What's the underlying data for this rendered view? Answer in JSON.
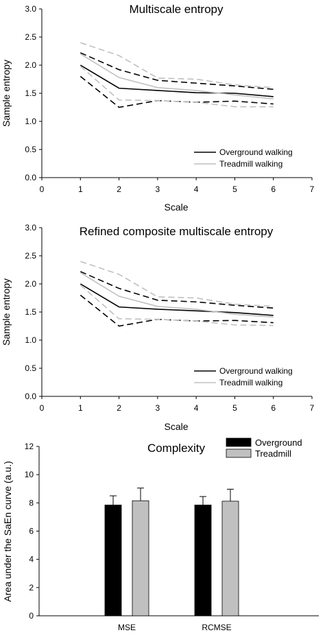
{
  "chart_data": [
    {
      "type": "line",
      "title": "Multiscale entropy",
      "xlabel": "Scale",
      "ylabel": "Sample entropy",
      "xlim": [
        0,
        7
      ],
      "ylim": [
        0,
        3.0
      ],
      "x_ticks": [
        "0",
        "1",
        "2",
        "3",
        "4",
        "5",
        "6",
        "7"
      ],
      "y_ticks": [
        "0.0",
        "0.5",
        "1.0",
        "1.5",
        "2.0",
        "2.5",
        "3.0"
      ],
      "x": [
        1,
        2,
        3,
        4,
        5,
        6
      ],
      "legend_position": "bottom-right",
      "series": [
        {
          "name": "Overground walking",
          "style": "solid",
          "color": "#000000",
          "values": [
            2.0,
            1.59,
            1.55,
            1.51,
            1.5,
            1.44
          ]
        },
        {
          "style": "dashed",
          "color": "#000000",
          "values": [
            2.22,
            1.92,
            1.73,
            1.68,
            1.63,
            1.57
          ]
        },
        {
          "style": "dashed",
          "color": "#000000",
          "values": [
            1.8,
            1.25,
            1.37,
            1.34,
            1.36,
            1.31
          ]
        },
        {
          "name": "Treadmill walking",
          "style": "solid",
          "color": "#c0c0c0",
          "values": [
            2.2,
            1.78,
            1.6,
            1.55,
            1.47,
            1.4
          ]
        },
        {
          "style": "dashed",
          "color": "#c0c0c0",
          "values": [
            2.4,
            2.17,
            1.77,
            1.75,
            1.65,
            1.6
          ]
        },
        {
          "style": "dashed",
          "color": "#c0c0c0",
          "values": [
            1.98,
            1.38,
            1.37,
            1.34,
            1.26,
            1.26
          ]
        }
      ]
    },
    {
      "type": "line",
      "title": "Refined composite multiscale entropy",
      "xlabel": "Scale",
      "ylabel": "Sample entropy",
      "xlim": [
        0,
        7
      ],
      "ylim": [
        0,
        3.0
      ],
      "x_ticks": [
        "0",
        "1",
        "2",
        "3",
        "4",
        "5",
        "6",
        "7"
      ],
      "y_ticks": [
        "0.0",
        "0.5",
        "1.0",
        "1.5",
        "2.0",
        "2.5",
        "3.0"
      ],
      "x": [
        1,
        2,
        3,
        4,
        5,
        6
      ],
      "legend_position": "bottom-right",
      "series": [
        {
          "name": "Overground walking",
          "style": "solid",
          "color": "#000000",
          "values": [
            2.0,
            1.59,
            1.55,
            1.52,
            1.49,
            1.44
          ]
        },
        {
          "style": "dashed",
          "color": "#000000",
          "values": [
            2.22,
            1.92,
            1.71,
            1.68,
            1.62,
            1.57
          ]
        },
        {
          "style": "dashed",
          "color": "#000000",
          "values": [
            1.8,
            1.25,
            1.37,
            1.34,
            1.35,
            1.31
          ]
        },
        {
          "name": "Treadmill walking",
          "style": "solid",
          "color": "#c0c0c0",
          "values": [
            2.2,
            1.78,
            1.6,
            1.55,
            1.46,
            1.41
          ]
        },
        {
          "style": "dashed",
          "color": "#c0c0c0",
          "values": [
            2.4,
            2.17,
            1.77,
            1.75,
            1.64,
            1.6
          ]
        },
        {
          "style": "dashed",
          "color": "#c0c0c0",
          "values": [
            1.98,
            1.38,
            1.37,
            1.34,
            1.27,
            1.26
          ]
        }
      ]
    },
    {
      "type": "bar",
      "title": "Complexity",
      "xlabel": "",
      "ylabel": "Area under the SaEn curve (a.u.)",
      "ylim": [
        0,
        12
      ],
      "y_ticks": [
        "0",
        "2",
        "4",
        "6",
        "8",
        "10",
        "12"
      ],
      "categories": [
        "MSE",
        "RCMSE"
      ],
      "legend_position": "top-right",
      "series": [
        {
          "name": "Overground",
          "color": "#000000",
          "values": [
            7.85,
            7.85
          ],
          "errors": [
            0.65,
            0.6
          ]
        },
        {
          "name": "Treadmill",
          "color": "#c0c0c0",
          "values": [
            8.15,
            8.12
          ],
          "errors": [
            0.9,
            0.85
          ]
        }
      ]
    }
  ]
}
